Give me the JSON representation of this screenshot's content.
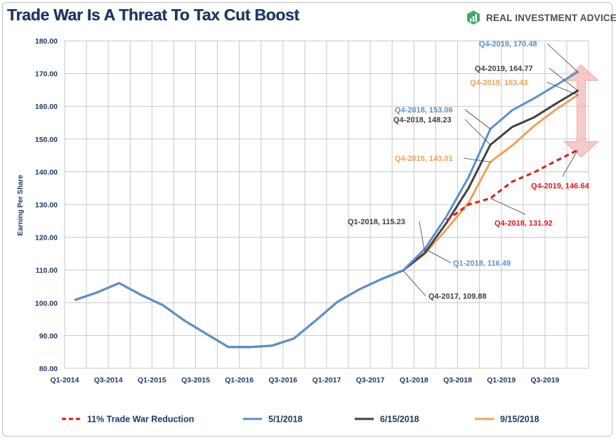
{
  "title": "Trade War Is A Threat To Tax Cut Boost",
  "brand": {
    "name": "REAL INVESTMENT ADVICE",
    "logo_icon": "bar-chart-logo-icon",
    "color": "#3aaa6a"
  },
  "chart_data": {
    "type": "line",
    "title": "Trade War Is A Threat To Tax Cut Boost",
    "xlabel": "",
    "ylabel": "Earning Per Share",
    "ylim": [
      80,
      180
    ],
    "ytick_step": 10,
    "yticks": [
      "80.00",
      "90.00",
      "100.00",
      "110.00",
      "120.00",
      "130.00",
      "140.00",
      "150.00",
      "160.00",
      "170.00",
      "180.00"
    ],
    "quarters": [
      "Q1-2014",
      "Q2-2014",
      "Q3-2014",
      "Q4-2014",
      "Q1-2015",
      "Q2-2015",
      "Q3-2015",
      "Q4-2015",
      "Q1-2016",
      "Q2-2016",
      "Q3-2016",
      "Q4-2016",
      "Q1-2017",
      "Q2-2017",
      "Q3-2017",
      "Q4-2017",
      "Q1-2018",
      "Q2-2018",
      "Q3-2018",
      "Q4-2018",
      "Q1-2019",
      "Q2-2019",
      "Q3-2019",
      "Q4-2019"
    ],
    "xtick_labels": [
      "Q1-2014",
      "Q3-2014",
      "Q1-2015",
      "Q3-2015",
      "Q1-2016",
      "Q3-2016",
      "Q1-2017",
      "Q3-2017",
      "Q1-2018",
      "Q3-2018",
      "Q1-2019",
      "Q3-2019"
    ],
    "grid": true,
    "legend_position": "bottom",
    "series": [
      {
        "name": "11% Trade War Reduction",
        "color": "#e8141c",
        "dashed": true,
        "x": [
          "Q2-2018",
          "Q3-2018",
          "Q4-2018",
          "Q1-2019",
          "Q2-2019",
          "Q3-2019",
          "Q4-2019"
        ],
        "values": [
          125.2,
          130.0,
          131.92,
          137.0,
          139.8,
          143.3,
          146.64
        ]
      },
      {
        "name": "5/1/2018",
        "color": "#5b8fcf",
        "dashed": false,
        "x": [
          "Q1-2014",
          "Q2-2014",
          "Q3-2014",
          "Q4-2014",
          "Q1-2015",
          "Q2-2015",
          "Q3-2015",
          "Q4-2015",
          "Q1-2016",
          "Q2-2016",
          "Q3-2016",
          "Q4-2016",
          "Q1-2017",
          "Q2-2017",
          "Q3-2017",
          "Q4-2017",
          "Q1-2018",
          "Q2-2018",
          "Q3-2018",
          "Q4-2018",
          "Q1-2019",
          "Q2-2019",
          "Q3-2019",
          "Q4-2019"
        ],
        "values": [
          100.9,
          103.2,
          106.0,
          102.4,
          99.3,
          94.5,
          90.5,
          86.5,
          86.5,
          86.9,
          89.1,
          94.6,
          100.3,
          104.1,
          107.2,
          109.88,
          116.49,
          126.5,
          138.3,
          153.06,
          158.8,
          162.4,
          166.4,
          170.48
        ]
      },
      {
        "name": "6/15/2018",
        "color": "#404040",
        "dashed": false,
        "x": [
          "Q1-2014",
          "Q2-2014",
          "Q3-2014",
          "Q4-2014",
          "Q1-2015",
          "Q2-2015",
          "Q3-2015",
          "Q4-2015",
          "Q1-2016",
          "Q2-2016",
          "Q3-2016",
          "Q4-2016",
          "Q1-2017",
          "Q2-2017",
          "Q3-2017",
          "Q4-2017",
          "Q1-2018",
          "Q2-2018",
          "Q3-2018",
          "Q4-2018",
          "Q1-2019",
          "Q2-2019",
          "Q3-2019",
          "Q4-2019"
        ],
        "values": [
          100.9,
          103.2,
          106.0,
          102.4,
          99.3,
          94.5,
          90.5,
          86.5,
          86.5,
          86.9,
          89.1,
          94.6,
          100.3,
          104.1,
          107.2,
          109.88,
          115.23,
          124.5,
          135.0,
          148.23,
          153.7,
          156.6,
          160.8,
          164.77
        ]
      },
      {
        "name": "9/15/2018",
        "color": "#f0a058",
        "dashed": false,
        "x": [
          "Q1-2014",
          "Q2-2014",
          "Q3-2014",
          "Q4-2014",
          "Q1-2015",
          "Q2-2015",
          "Q3-2015",
          "Q4-2015",
          "Q1-2016",
          "Q2-2016",
          "Q3-2016",
          "Q4-2016",
          "Q1-2017",
          "Q2-2017",
          "Q3-2017",
          "Q4-2017",
          "Q1-2018",
          "Q2-2018",
          "Q3-2018",
          "Q4-2018",
          "Q1-2019",
          "Q2-2019",
          "Q3-2019",
          "Q4-2019"
        ],
        "values": [
          100.9,
          103.2,
          106.0,
          102.4,
          99.3,
          94.5,
          90.5,
          86.5,
          86.5,
          86.9,
          89.1,
          94.6,
          100.3,
          104.1,
          107.2,
          109.88,
          115.0,
          122.5,
          130.5,
          143.01,
          148.0,
          154.0,
          159.0,
          163.43
        ]
      }
    ],
    "annotations": [
      {
        "text": "Q4-2019,  170.48",
        "color": "#5b8fcf",
        "x": "Q4-2019",
        "y": 170.48
      },
      {
        "text": "Q4-2019,  164.77",
        "color": "#404040",
        "x": "Q4-2019",
        "y": 164.77
      },
      {
        "text": "Q4-2019,  163.43",
        "color": "#f0a058",
        "x": "Q4-2019",
        "y": 163.43
      },
      {
        "text": "Q4-2018,  153.06",
        "color": "#5b8fcf",
        "x": "Q4-2018",
        "y": 153.06
      },
      {
        "text": "Q4-2018,  148.23",
        "color": "#404040",
        "x": "Q4-2018",
        "y": 148.23
      },
      {
        "text": "Q4-2018,  143.01",
        "color": "#f0a058",
        "x": "Q4-2018",
        "y": 143.01
      },
      {
        "text": "Q4-2019,  146.64",
        "color": "#e8141c",
        "x": "Q4-2019",
        "y": 146.64
      },
      {
        "text": "Q4-2018,  131.92",
        "color": "#e8141c",
        "x": "Q4-2018",
        "y": 131.92
      },
      {
        "text": "Q1-2018,  115.23",
        "color": "#404040",
        "x": "Q1-2018",
        "y": 115.23
      },
      {
        "text": "Q1-2018,  116.49",
        "color": "#5b8fcf",
        "x": "Q1-2018",
        "y": 116.49
      },
      {
        "text": "Q4-2017,  109.88",
        "color": "#404040",
        "x": "Q4-2017",
        "y": 109.88
      }
    ],
    "gap_arrow": {
      "x": "Q4-2019",
      "from": 146.64,
      "to": 170.48,
      "color": "#f4b8b8"
    }
  }
}
